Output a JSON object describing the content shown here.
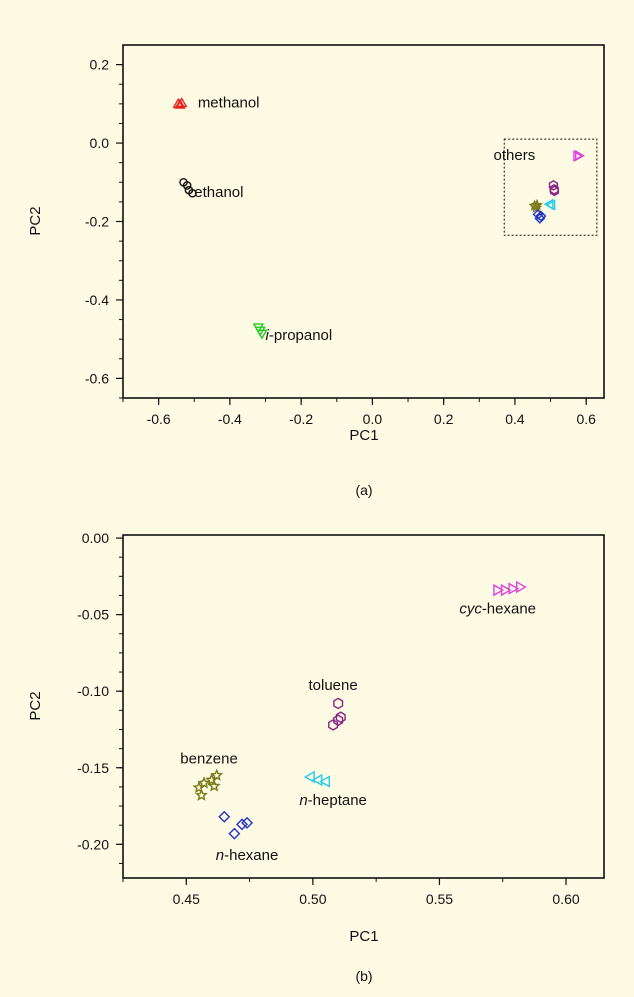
{
  "figure": {
    "background": "#fdfbe3"
  },
  "chart_data": [
    {
      "type": "scatter",
      "panel_label": "(a)",
      "xlabel": "PC1",
      "ylabel": "PC2",
      "xlim": [
        -0.7,
        0.65
      ],
      "ylim": [
        -0.65,
        0.25
      ],
      "xticks": [
        -0.6,
        -0.4,
        -0.2,
        0.0,
        0.2,
        0.4,
        0.6
      ],
      "xtick_labels": [
        "-0.6",
        "-0.4",
        "-0.2",
        "0.0",
        "0.2",
        "0.4",
        "0.6"
      ],
      "yticks": [
        0.2,
        0.0,
        -0.2,
        -0.4,
        -0.6
      ],
      "ytick_labels": [
        "0.2",
        "0.0",
        "-0.2",
        "-0.4",
        "-0.6"
      ],
      "grid": false,
      "series": [
        {
          "name": "methanol",
          "marker": "triangle-up",
          "color": "#e8231f",
          "x": [
            -0.545,
            -0.535,
            -0.54
          ],
          "y": [
            0.1,
            0.102,
            0.098
          ]
        },
        {
          "name": "ethanol",
          "marker": "circle",
          "color": "#111111",
          "x": [
            -0.53,
            -0.52,
            -0.515,
            -0.505
          ],
          "y": [
            -0.1,
            -0.108,
            -0.12,
            -0.128
          ]
        },
        {
          "name": "i-propanol",
          "marker": "triangle-down",
          "color": "#22cc22",
          "x": [
            -0.32,
            -0.315,
            -0.31
          ],
          "y": [
            -0.47,
            -0.478,
            -0.486
          ]
        },
        {
          "name": "cyc-hexane",
          "marker": "triangle-right",
          "color": "#e040e0",
          "x": [
            0.575,
            0.58
          ],
          "y": [
            -0.033,
            -0.032
          ]
        },
        {
          "name": "toluene",
          "marker": "hexagon",
          "color": "#882288",
          "x": [
            0.508,
            0.51,
            0.511
          ],
          "y": [
            -0.108,
            -0.118,
            -0.122
          ]
        },
        {
          "name": "n-heptane",
          "marker": "triangle-left",
          "color": "#22ccee",
          "x": [
            0.497,
            0.502
          ],
          "y": [
            -0.156,
            -0.158
          ]
        },
        {
          "name": "benzene",
          "marker": "star",
          "color": "#7a7a1a",
          "x": [
            0.455,
            0.46,
            0.462
          ],
          "y": [
            -0.16,
            -0.165,
            -0.158
          ]
        },
        {
          "name": "n-hexane",
          "marker": "diamond",
          "color": "#2233cc",
          "x": [
            0.465,
            0.47,
            0.473
          ],
          "y": [
            -0.182,
            -0.192,
            -0.186
          ]
        }
      ],
      "annotations": [
        {
          "text": "methanol",
          "x": -0.49,
          "y": 0.103
        },
        {
          "text": "ethanol",
          "x": -0.5,
          "y": -0.125
        },
        {
          "text_italic": "i",
          "text": "-propanol",
          "x": -0.3,
          "y": -0.49
        },
        {
          "text": "others",
          "x": 0.34,
          "y": -0.03
        }
      ],
      "box": {
        "label": "others",
        "x": [
          0.37,
          0.63
        ],
        "y": [
          -0.235,
          0.01
        ]
      }
    },
    {
      "type": "scatter",
      "panel_label": "(b)",
      "xlabel": "PC1",
      "ylabel": "PC2",
      "xlim": [
        0.425,
        0.615
      ],
      "ylim": [
        -0.222,
        0.002
      ],
      "xticks": [
        0.45,
        0.5,
        0.55,
        0.6
      ],
      "xtick_labels": [
        "0.45",
        "0.50",
        "0.55",
        "0.60"
      ],
      "yticks": [
        0.0,
        -0.05,
        -0.1,
        -0.15,
        -0.2
      ],
      "ytick_labels": [
        "0.00",
        "-0.05",
        "-0.10",
        "-0.15",
        "-0.20"
      ],
      "grid": false,
      "series": [
        {
          "name": "cyc-hexane",
          "marker": "triangle-right",
          "color": "#e040e0",
          "x": [
            0.573,
            0.576,
            0.579,
            0.582
          ],
          "y": [
            -0.034,
            -0.034,
            -0.033,
            -0.032
          ]
        },
        {
          "name": "toluene",
          "marker": "hexagon",
          "color": "#882288",
          "x": [
            0.508,
            0.51,
            0.511,
            0.51
          ],
          "y": [
            -0.122,
            -0.119,
            -0.117,
            -0.108
          ]
        },
        {
          "name": "n-heptane",
          "marker": "triangle-left",
          "color": "#22ccee",
          "x": [
            0.499,
            0.502,
            0.505
          ],
          "y": [
            -0.156,
            -0.158,
            -0.159
          ]
        },
        {
          "name": "benzene",
          "marker": "star",
          "color": "#7a7a1a",
          "x": [
            0.455,
            0.457,
            0.46,
            0.462,
            0.461,
            0.456
          ],
          "y": [
            -0.163,
            -0.16,
            -0.158,
            -0.155,
            -0.162,
            -0.168
          ]
        },
        {
          "name": "n-hexane",
          "marker": "diamond",
          "color": "#2233cc",
          "x": [
            0.465,
            0.469,
            0.472,
            0.474
          ],
          "y": [
            -0.182,
            -0.193,
            -0.187,
            -0.186
          ]
        }
      ],
      "annotations": [
        {
          "text": "cyc-hexane",
          "text_italic": "cyc",
          "rest": "-hexane",
          "x": 0.573,
          "y": -0.046
        },
        {
          "text": "toluene",
          "x": 0.508,
          "y": -0.096
        },
        {
          "text": "n-heptane",
          "text_italic": "n",
          "rest": "-heptane",
          "x": 0.508,
          "y": -0.171
        },
        {
          "text": "benzene",
          "x": 0.459,
          "y": -0.144
        },
        {
          "text": "n-hexane",
          "text_italic": "n",
          "rest": "-hexane",
          "x": 0.474,
          "y": -0.207
        }
      ]
    }
  ]
}
